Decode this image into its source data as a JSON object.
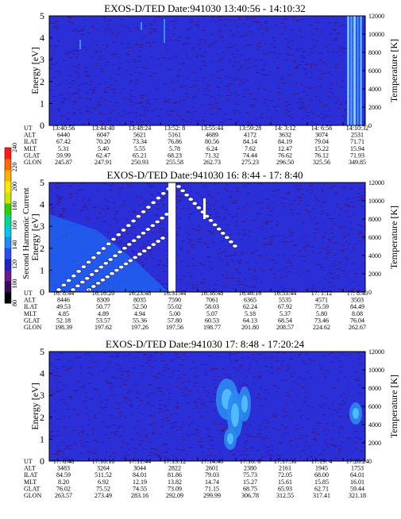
{
  "chart_data": [
    {
      "type": "heatmap",
      "title": "EXOS-D/TED   Date:941030   13:40:56 - 14:10:32",
      "ylabel": "Energy [eV]",
      "ylabel_right": "Temperature [K]",
      "ylim": [
        0,
        5
      ],
      "ylim_right": [
        0,
        12000
      ],
      "yticks": [
        "0",
        "1",
        "2",
        "3",
        "4",
        "5"
      ],
      "yticks_right": [
        "0",
        "2000",
        "4000",
        "6000",
        "8000",
        "10000",
        "12000"
      ],
      "row_labels": [
        "UT",
        "ALT",
        "ILAT",
        "MLT",
        "GLAT",
        "GLON"
      ],
      "columns": [
        [
          "13:40:56",
          "6440",
          "67.42",
          "5.31",
          "59.99",
          "245.87"
        ],
        [
          "13:44:40",
          "6047",
          "70.20",
          "5.40",
          "62.47",
          "247.91"
        ],
        [
          "13:48:24",
          "5621",
          "73.34",
          "5.55",
          "65.21",
          "250.93"
        ],
        [
          "13:52: 8",
          "5161",
          "76.86",
          "5.78",
          "68.23",
          "255.58"
        ],
        [
          "13:55:44",
          "4689",
          "80.56",
          "6.24",
          "71.32",
          "262.73"
        ],
        [
          "13:59:28",
          "4172",
          "84.14",
          "7.62",
          "74.44",
          "275.23"
        ],
        [
          "14: 3:12",
          "3632",
          "84.19",
          "12.47",
          "76.62",
          "296.50"
        ],
        [
          "14: 6:56",
          "3074",
          "79.04",
          "15.22",
          "76.12",
          "325.56"
        ],
        [
          "14:10:32",
          "2531",
          "71.71",
          "15.94",
          "71.93",
          "349.85"
        ]
      ]
    },
    {
      "type": "heatmap",
      "title": "EXOS-D/TED   Date:941030   16: 8:44 - 17: 8:40",
      "ylabel": "Energy [eV]",
      "ylabel_right": "Temperature [K]",
      "ylim": [
        0,
        5
      ],
      "ylim_right": [
        0,
        12000
      ],
      "yticks": [
        "0",
        "1",
        "2",
        "3",
        "4",
        "5"
      ],
      "yticks_right": [
        "0",
        "2000",
        "4000",
        "6000",
        "8000",
        "10000",
        "12000"
      ],
      "row_labels": [
        "UT",
        "ALT",
        "ILAT",
        "MLT",
        "GLAT",
        "GLON"
      ],
      "columns": [
        [
          "16: 8:44",
          "8446",
          "49.53",
          "4.85",
          "52.18",
          "198.39"
        ],
        [
          "16:16:20",
          "8309",
          "50.77",
          "4.89",
          "53.57",
          "197.62"
        ],
        [
          "16:23:48",
          "8035",
          "52.50",
          "4.94",
          "55.36",
          "197.26"
        ],
        [
          "16:31:44",
          "7590",
          "55.02",
          "5.00",
          "57.80",
          "197.56"
        ],
        [
          "16:38:48",
          "7061",
          "58.03",
          "5.07",
          "60.53",
          "198.77"
        ],
        [
          "16:46:16",
          "6365",
          "62.24",
          "5.18",
          "64.13",
          "201.80"
        ],
        [
          "16:53:44",
          "5535",
          "67.92",
          "5.37",
          "68.54",
          "208.57"
        ],
        [
          "17: 1:12",
          "4571",
          "75.59",
          "5.80",
          "73.46",
          "224.62"
        ],
        [
          "17: 8:40",
          "3503",
          "84.49",
          "8.08",
          "76.04",
          "262.67"
        ]
      ]
    },
    {
      "type": "heatmap",
      "title": "EXOS-D/TED   Date:941030   17: 8:48 - 17:20:24",
      "ylabel": "Energy [eV]",
      "ylabel_right": "Temperature [K]",
      "ylim": [
        0,
        5
      ],
      "ylim_right": [
        0,
        12000
      ],
      "yticks": [
        "0",
        "1",
        "2",
        "3",
        "4",
        "5"
      ],
      "yticks_right": [
        "0",
        "2000",
        "4000",
        "6000",
        "8000",
        "10000",
        "12000"
      ],
      "row_labels": [
        "UT",
        "ALT",
        "ILAT",
        "MLT",
        "GLAT",
        "GLON"
      ],
      "columns": [
        [
          "17: 8:48",
          "3483",
          "84.59",
          "8.20",
          "76.02",
          "263.57"
        ],
        [
          "17:10:16",
          "3264",
          "511.52",
          "6.92",
          "75.52",
          "273.49"
        ],
        [
          "17:11:44",
          "3044",
          "84.01",
          "12.19",
          "74.55",
          "283.16"
        ],
        [
          "17:13:12",
          "2822",
          "81.86",
          "13.82",
          "73.09",
          "292.09"
        ],
        [
          "17:14:40",
          "2601",
          "79.03",
          "14.74",
          "71.15",
          "299.99"
        ],
        [
          "17:16: 8",
          "2380",
          "75.73",
          "15.27",
          "68.75",
          "306.78"
        ],
        [
          "17:17:36",
          "2161",
          "72.05",
          "15.61",
          "65.93",
          "312.55"
        ],
        [
          "17:19: 4",
          "1945",
          "68.00",
          "15.85",
          "62.71",
          "317.41"
        ],
        [
          "17:20:24",
          "1753",
          "64.01",
          "16.01",
          "59.44",
          "321.18"
        ]
      ]
    },
    {
      "type": "colorbar",
      "label": "Second Harmonic Current",
      "ticks": [
        "80",
        "100",
        "120",
        "140",
        "160",
        "180",
        "200",
        "220",
        "240"
      ],
      "range": [
        80,
        240
      ],
      "colors": [
        "#000000",
        "#3a0a5a",
        "#6a1a8a",
        "#1a22c8",
        "#2a4cf0",
        "#1e8cf0",
        "#00c8e6",
        "#00d88a",
        "#30d000",
        "#c8e600",
        "#ffe800",
        "#ffb000",
        "#ff6a00",
        "#ff1a1a"
      ]
    }
  ]
}
